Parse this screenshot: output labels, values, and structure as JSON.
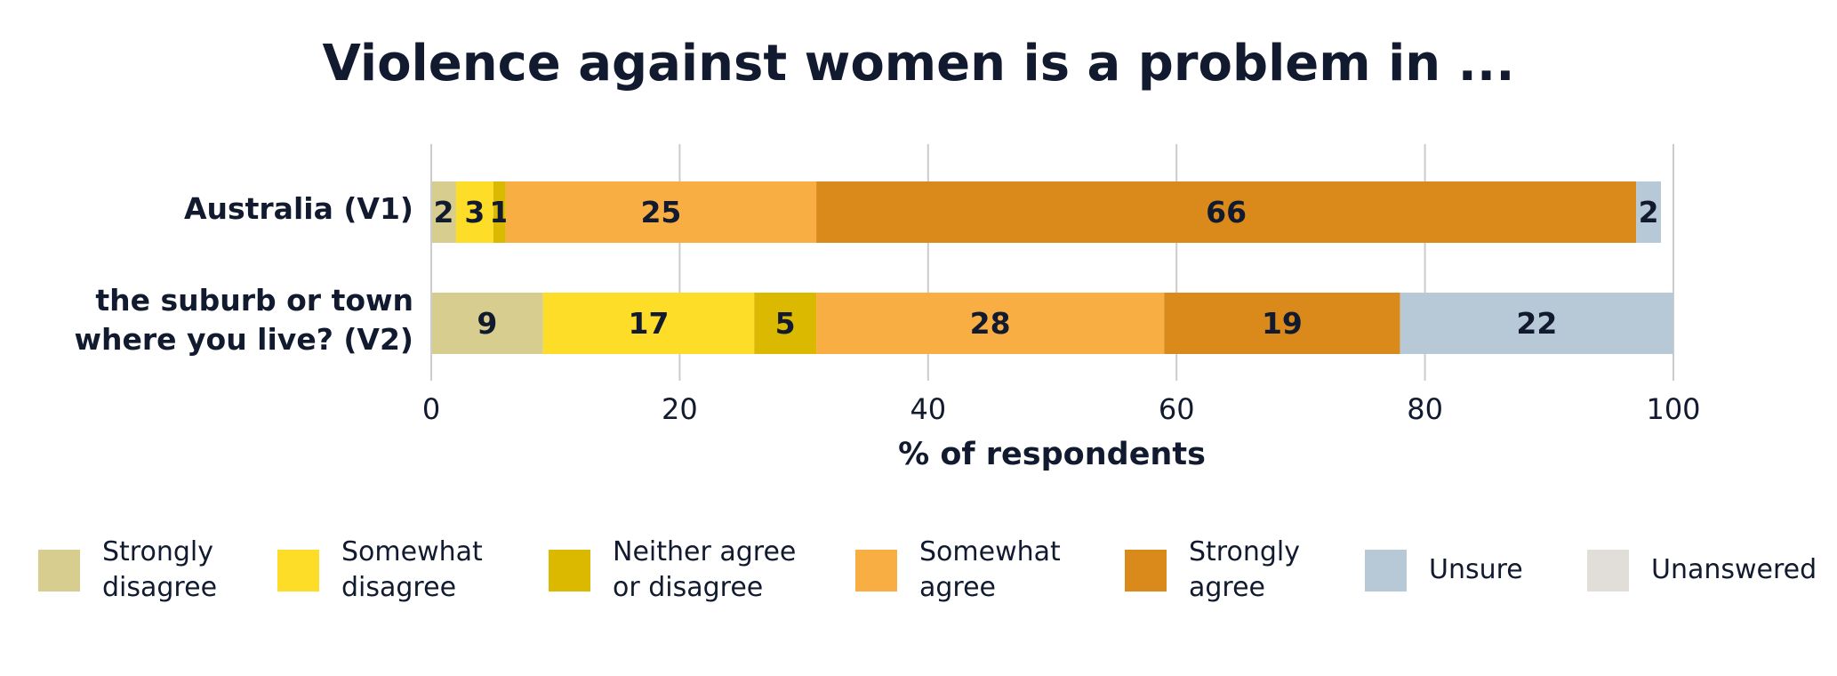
{
  "chart_data": {
    "type": "stacked-bar-horizontal",
    "title": "Violence against women is a problem in ...",
    "categories": [
      "Australia (V1)",
      "the suburb or town where you live?  (V2)"
    ],
    "series": [
      {
        "name": "Strongly disagree",
        "color": "#d6cd8f",
        "values": [
          2,
          9
        ]
      },
      {
        "name": "Somewhat disagree",
        "color": "#fddd27",
        "values": [
          3,
          17
        ]
      },
      {
        "name": "Neither agree or disagree",
        "color": "#dbb900",
        "values": [
          1,
          5
        ]
      },
      {
        "name": "Somewhat agree",
        "color": "#f9ae43",
        "values": [
          25,
          28
        ]
      },
      {
        "name": "Strongly agree",
        "color": "#d98a1b",
        "values": [
          66,
          19
        ]
      },
      {
        "name": "Unsure",
        "color": "#b7c8d6",
        "values": [
          2,
          22
        ]
      },
      {
        "name": "Unanswered",
        "color": "#e1ddd9",
        "values": [
          0,
          0
        ]
      }
    ],
    "xlabel": "% of respondents",
    "xlim": [
      0,
      100
    ],
    "xticks": [
      0,
      20,
      40,
      60,
      80,
      100
    ],
    "grid": true
  }
}
